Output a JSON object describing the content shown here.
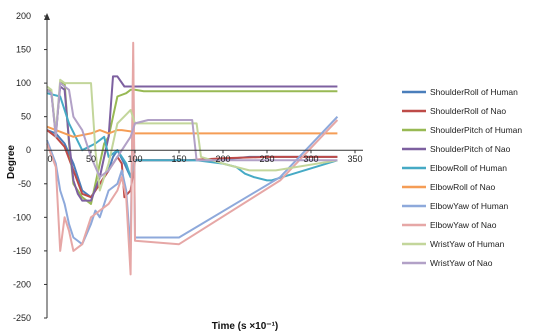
{
  "chart_data": {
    "type": "line",
    "title": "",
    "xlabel": "Time (s ×10⁻¹)",
    "ylabel": "Degree",
    "xlim": [
      0,
      350
    ],
    "ylim": [
      -250,
      200
    ],
    "xticks": [
      0,
      50,
      100,
      150,
      200,
      250,
      300,
      350
    ],
    "xtick_labels": [
      "0",
      "50",
      "100",
      "150",
      "200",
      "250",
      "300",
      "350"
    ],
    "yticks": [
      -250,
      -200,
      -150,
      -100,
      -50,
      0,
      50,
      100,
      150,
      200
    ],
    "ytick_labels": [
      "-250",
      "-200",
      "-150",
      "-100",
      "-50",
      "0",
      "50",
      "100",
      "150",
      "200"
    ],
    "grid": false,
    "legend_position": "right",
    "series": [
      {
        "name": "ShoulderRoll of Human",
        "color": "#4a7ebb",
        "x": [
          0,
          10,
          20,
          30,
          40,
          50,
          60,
          70,
          75,
          80,
          88,
          95,
          100,
          160,
          190,
          230,
          250,
          265,
          330
        ],
        "y": [
          30,
          25,
          10,
          -20,
          -60,
          -70,
          -50,
          -30,
          -10,
          0,
          -20,
          -40,
          -15,
          -15,
          -15,
          -10,
          -10,
          -10,
          -10
        ]
      },
      {
        "name": "ShoulderRoll of Nao",
        "color": "#be4b48",
        "x": [
          0,
          10,
          20,
          30,
          40,
          50,
          60,
          70,
          80,
          85,
          88,
          95,
          100,
          160,
          200,
          250,
          265,
          330
        ],
        "y": [
          30,
          20,
          5,
          -30,
          -65,
          -70,
          -50,
          -30,
          -10,
          -20,
          -70,
          -60,
          -15,
          -15,
          -12,
          -10,
          -10,
          -10
        ]
      },
      {
        "name": "ShoulderPitch of Human",
        "color": "#98b954",
        "x": [
          0,
          5,
          10,
          15,
          20,
          25,
          30,
          35,
          40,
          50,
          60,
          65,
          70,
          80,
          90,
          95,
          100,
          110,
          330
        ],
        "y": [
          90,
          88,
          20,
          100,
          100,
          10,
          -50,
          -60,
          -70,
          -80,
          -20,
          10,
          20,
          80,
          85,
          90,
          90,
          88,
          88
        ]
      },
      {
        "name": "ShoulderPitch of Nao",
        "color": "#7d60a0",
        "x": [
          0,
          5,
          10,
          15,
          20,
          25,
          30,
          35,
          40,
          50,
          60,
          65,
          70,
          75,
          80,
          88,
          100,
          330
        ],
        "y": [
          90,
          85,
          25,
          95,
          90,
          15,
          -45,
          -65,
          -75,
          -75,
          -40,
          -10,
          20,
          110,
          110,
          95,
          95,
          95
        ]
      },
      {
        "name": "ElbowRoll of Human",
        "color": "#46aac5",
        "x": [
          0,
          15,
          25,
          40,
          55,
          65,
          70,
          75,
          80,
          90,
          95,
          100,
          165,
          170,
          200,
          215,
          225,
          235,
          250,
          255,
          330
        ],
        "y": [
          85,
          80,
          40,
          0,
          10,
          20,
          -10,
          -5,
          0,
          -20,
          -40,
          -15,
          -15,
          -15,
          -20,
          -25,
          -35,
          -40,
          -45,
          -45,
          -15
        ]
      },
      {
        "name": "ElbowRoll of Nao",
        "color": "#f59d56",
        "x": [
          0,
          10,
          20,
          30,
          50,
          60,
          70,
          80,
          85,
          95,
          100,
          150,
          330
        ],
        "y": [
          35,
          30,
          25,
          20,
          25,
          30,
          25,
          30,
          30,
          28,
          25,
          25,
          25
        ]
      },
      {
        "name": "ElbowYaw of Human",
        "color": "#8ea9db",
        "x": [
          0,
          10,
          15,
          20,
          25,
          30,
          40,
          50,
          55,
          60,
          70,
          80,
          85,
          90,
          95,
          98,
          100,
          150,
          265,
          330
        ],
        "y": [
          15,
          -20,
          -60,
          -80,
          -110,
          -130,
          -140,
          -110,
          -90,
          -100,
          -60,
          -50,
          -30,
          -60,
          -150,
          130,
          -130,
          -130,
          -40,
          50
        ]
      },
      {
        "name": "ElbowYaw of Nao",
        "color": "#e6a7a6",
        "x": [
          0,
          10,
          15,
          20,
          25,
          30,
          40,
          50,
          55,
          60,
          70,
          80,
          85,
          90,
          95,
          98,
          100,
          150,
          265,
          330
        ],
        "y": [
          10,
          -25,
          -150,
          -100,
          -120,
          -150,
          -140,
          -100,
          -95,
          -90,
          -80,
          -60,
          -40,
          -70,
          -185,
          160,
          -135,
          -140,
          -45,
          45
        ]
      },
      {
        "name": "WristYaw of Human",
        "color": "#c3d69b",
        "x": [
          0,
          5,
          10,
          15,
          20,
          25,
          30,
          40,
          50,
          55,
          60,
          70,
          80,
          95,
          100,
          150,
          170,
          175,
          200,
          230,
          260,
          330
        ],
        "y": [
          95,
          90,
          25,
          105,
          100,
          100,
          100,
          100,
          100,
          0,
          -60,
          -20,
          40,
          60,
          40,
          40,
          40,
          -10,
          -20,
          -30,
          -30,
          -15
        ]
      },
      {
        "name": "WristYaw of Nao",
        "color": "#b2a1c7",
        "x": [
          0,
          5,
          10,
          15,
          20,
          25,
          30,
          40,
          50,
          60,
          70,
          80,
          95,
          100,
          115,
          165,
          170,
          200,
          250,
          265,
          330
        ],
        "y": [
          90,
          85,
          20,
          100,
          95,
          90,
          50,
          30,
          -10,
          -40,
          -30,
          -10,
          20,
          40,
          45,
          45,
          -15,
          -15,
          -15,
          -15,
          -15
        ]
      }
    ]
  }
}
